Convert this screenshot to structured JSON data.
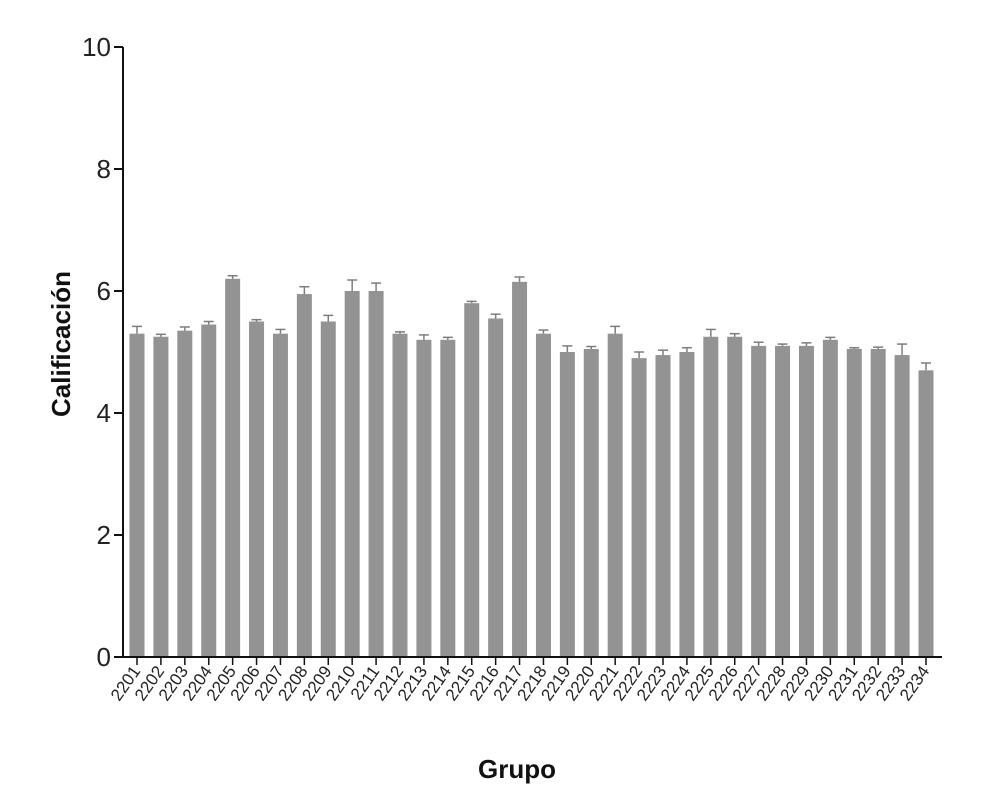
{
  "chart_data": {
    "type": "bar",
    "title": "",
    "xlabel": "Grupo",
    "ylabel": "Calificación",
    "ylim": [
      0,
      10
    ],
    "yticks": [
      0,
      2,
      4,
      6,
      8,
      10
    ],
    "yticks_labels": [
      "0",
      "2",
      "4",
      "6",
      "8",
      "10"
    ],
    "grid": false,
    "categories": [
      "2201",
      "2202",
      "2203",
      "2204",
      "2205",
      "2206",
      "2207",
      "2208",
      "2209",
      "2210",
      "2211",
      "2212",
      "2213",
      "2214",
      "2215",
      "2216",
      "2217",
      "2218",
      "2219",
      "2220",
      "2221",
      "2222",
      "2223",
      "2224",
      "2225",
      "2226",
      "2227",
      "2228",
      "2229",
      "2230",
      "2231",
      "2232",
      "2233",
      "2234"
    ],
    "values": [
      5.3,
      5.25,
      5.35,
      5.45,
      6.2,
      5.5,
      5.3,
      5.95,
      5.5,
      6.0,
      6.0,
      5.3,
      5.2,
      5.2,
      5.8,
      5.55,
      6.15,
      5.3,
      5.0,
      5.05,
      5.3,
      4.9,
      4.95,
      5.0,
      5.25,
      5.25,
      5.1,
      5.1,
      5.1,
      5.2,
      5.05,
      5.05,
      4.95,
      4.7
    ],
    "errors": [
      0.12,
      0.04,
      0.06,
      0.05,
      0.05,
      0.03,
      0.07,
      0.12,
      0.1,
      0.18,
      0.13,
      0.03,
      0.08,
      0.04,
      0.03,
      0.07,
      0.08,
      0.06,
      0.1,
      0.04,
      0.12,
      0.1,
      0.08,
      0.07,
      0.12,
      0.05,
      0.06,
      0.03,
      0.05,
      0.04,
      0.02,
      0.03,
      0.18,
      0.12
    ],
    "colors": {
      "bar": "#939393",
      "axis": "#111111",
      "error_bar": "#7d7d7d"
    }
  }
}
